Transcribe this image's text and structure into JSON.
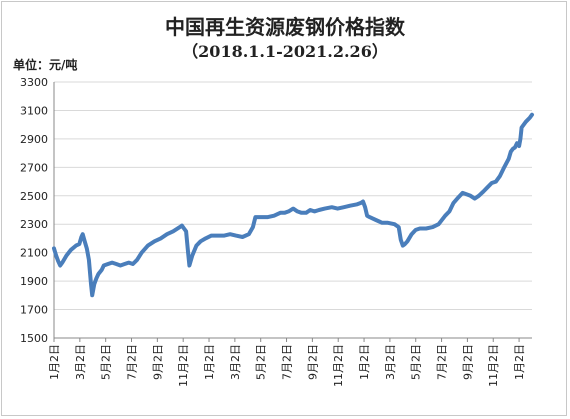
{
  "chart_data": {
    "type": "line",
    "title": "中国再生资源废钢价格指数",
    "subtitle": "（2018.1.1-2021.2.26）",
    "unit_label": "单位：元/吨",
    "xlabel": "",
    "ylabel": "",
    "ylim": [
      1500,
      3300
    ],
    "y_ticks": [
      1500,
      1700,
      1900,
      2100,
      2300,
      2500,
      2700,
      2900,
      3100,
      3300
    ],
    "x_tick_labels": [
      "1月2日",
      "3月2日",
      "5月2日",
      "7月2日",
      "9月2日",
      "11月2日",
      "1月2日",
      "3月2日",
      "5月2日",
      "7月2日",
      "9月2日",
      "11月2日",
      "1月2日",
      "3月2日",
      "5月2日",
      "7月2日",
      "9月2日",
      "11月2日",
      "1月2日"
    ],
    "grid": "horizontal",
    "legend": "none",
    "series": [
      {
        "color": "#4a7ebb",
        "points": [
          [
            "2018-01-02",
            2130
          ],
          [
            "2018-01-07",
            2080
          ],
          [
            "2018-01-12",
            2040
          ],
          [
            "2018-01-17",
            2010
          ],
          [
            "2018-01-22",
            2030
          ],
          [
            "2018-02-01",
            2080
          ],
          [
            "2018-02-12",
            2120
          ],
          [
            "2018-02-24",
            2150
          ],
          [
            "2018-03-04",
            2160
          ],
          [
            "2018-03-09",
            2210
          ],
          [
            "2018-03-12",
            2230
          ],
          [
            "2018-03-17",
            2180
          ],
          [
            "2018-03-22",
            2130
          ],
          [
            "2018-03-27",
            2050
          ],
          [
            "2018-04-01",
            1880
          ],
          [
            "2018-04-04",
            1800
          ],
          [
            "2018-04-09",
            1880
          ],
          [
            "2018-04-14",
            1920
          ],
          [
            "2018-04-19",
            1950
          ],
          [
            "2018-04-27",
            1980
          ],
          [
            "2018-05-02",
            2010
          ],
          [
            "2018-05-12",
            2020
          ],
          [
            "2018-05-22",
            2030
          ],
          [
            "2018-06-01",
            2020
          ],
          [
            "2018-06-11",
            2010
          ],
          [
            "2018-06-21",
            2020
          ],
          [
            "2018-07-01",
            2030
          ],
          [
            "2018-07-11",
            2020
          ],
          [
            "2018-07-21",
            2050
          ],
          [
            "2018-08-01",
            2100
          ],
          [
            "2018-08-16",
            2150
          ],
          [
            "2018-09-01",
            2180
          ],
          [
            "2018-09-16",
            2200
          ],
          [
            "2018-10-01",
            2230
          ],
          [
            "2018-10-16",
            2250
          ],
          [
            "2018-11-01",
            2280
          ],
          [
            "2018-11-06",
            2290
          ],
          [
            "2018-11-11",
            2270
          ],
          [
            "2018-11-16",
            2250
          ],
          [
            "2018-11-21",
            2100
          ],
          [
            "2018-11-24",
            2010
          ],
          [
            "2018-12-01",
            2080
          ],
          [
            "2018-12-11",
            2150
          ],
          [
            "2018-12-21",
            2180
          ],
          [
            "2019-01-02",
            2200
          ],
          [
            "2019-01-16",
            2220
          ],
          [
            "2019-02-01",
            2220
          ],
          [
            "2019-02-16",
            2220
          ],
          [
            "2019-03-02",
            2230
          ],
          [
            "2019-03-16",
            2220
          ],
          [
            "2019-04-01",
            2210
          ],
          [
            "2019-04-16",
            2230
          ],
          [
            "2019-04-26",
            2280
          ],
          [
            "2019-05-02",
            2350
          ],
          [
            "2019-05-12",
            2350
          ],
          [
            "2019-06-01",
            2350
          ],
          [
            "2019-06-16",
            2360
          ],
          [
            "2019-07-01",
            2380
          ],
          [
            "2019-07-11",
            2380
          ],
          [
            "2019-07-21",
            2390
          ],
          [
            "2019-08-01",
            2410
          ],
          [
            "2019-08-11",
            2390
          ],
          [
            "2019-08-21",
            2380
          ],
          [
            "2019-09-01",
            2380
          ],
          [
            "2019-09-11",
            2400
          ],
          [
            "2019-09-21",
            2390
          ],
          [
            "2019-10-02",
            2400
          ],
          [
            "2019-10-16",
            2410
          ],
          [
            "2019-11-02",
            2420
          ],
          [
            "2019-11-16",
            2410
          ],
          [
            "2019-12-01",
            2420
          ],
          [
            "2019-12-16",
            2430
          ],
          [
            "2020-01-02",
            2440
          ],
          [
            "2020-01-11",
            2450
          ],
          [
            "2020-01-16",
            2460
          ],
          [
            "2020-01-21",
            2420
          ],
          [
            "2020-01-26",
            2360
          ],
          [
            "2020-02-01",
            2350
          ],
          [
            "2020-02-16",
            2330
          ],
          [
            "2020-03-02",
            2310
          ],
          [
            "2020-03-16",
            2310
          ],
          [
            "2020-04-01",
            2300
          ],
          [
            "2020-04-11",
            2280
          ],
          [
            "2020-04-16",
            2190
          ],
          [
            "2020-04-21",
            2150
          ],
          [
            "2020-04-26",
            2160
          ],
          [
            "2020-05-02",
            2180
          ],
          [
            "2020-05-12",
            2230
          ],
          [
            "2020-05-22",
            2260
          ],
          [
            "2020-06-01",
            2270
          ],
          [
            "2020-06-16",
            2270
          ],
          [
            "2020-07-02",
            2280
          ],
          [
            "2020-07-16",
            2300
          ],
          [
            "2020-08-01",
            2360
          ],
          [
            "2020-08-11",
            2390
          ],
          [
            "2020-08-21",
            2450
          ],
          [
            "2020-09-02",
            2490
          ],
          [
            "2020-09-12",
            2520
          ],
          [
            "2020-09-22",
            2510
          ],
          [
            "2020-10-01",
            2500
          ],
          [
            "2020-10-11",
            2480
          ],
          [
            "2020-10-21",
            2500
          ],
          [
            "2020-11-01",
            2530
          ],
          [
            "2020-11-11",
            2560
          ],
          [
            "2020-11-21",
            2590
          ],
          [
            "2020-12-01",
            2600
          ],
          [
            "2020-12-11",
            2640
          ],
          [
            "2020-12-21",
            2700
          ],
          [
            "2021-01-01",
            2760
          ],
          [
            "2021-01-06",
            2810
          ],
          [
            "2021-01-11",
            2830
          ],
          [
            "2021-01-16",
            2840
          ],
          [
            "2021-01-21",
            2870
          ],
          [
            "2021-01-26",
            2850
          ],
          [
            "2021-01-29",
            2900
          ],
          [
            "2021-02-01",
            2980
          ],
          [
            "2021-02-11",
            3020
          ],
          [
            "2021-02-21",
            3050
          ],
          [
            "2021-02-26",
            3070
          ]
        ]
      }
    ]
  }
}
